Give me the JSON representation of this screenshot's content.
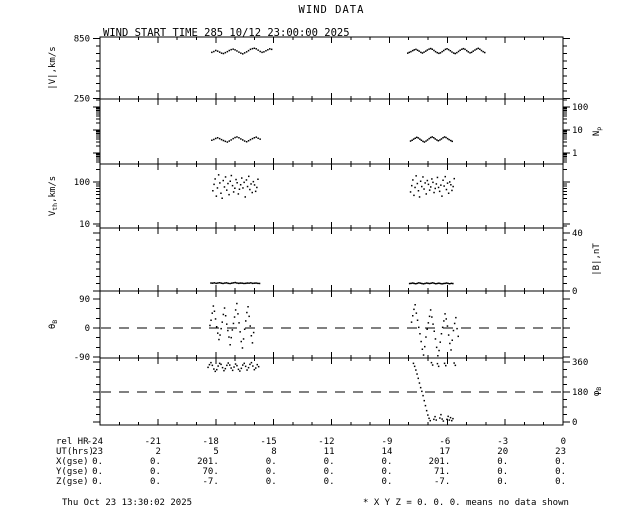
{
  "title": "WIND DATA",
  "subtitle": "WIND START TIME 285 10/12 23:00:00 2025",
  "footer_left": "Thu Oct 23 13:30:02 2025",
  "footer_right": "* X Y Z = 0. 0. 0. means no data shown",
  "colors": {
    "foreground": "#000000",
    "background": "#ffffff"
  },
  "chart_data": {
    "type": "scatter",
    "title": "WIND DATA",
    "x_axis": {
      "label": "rel HR",
      "min": -24,
      "max": 0,
      "minor_step": 1,
      "major_step": 3
    },
    "panels": [
      {
        "name": "bulk-speed",
        "ylabel": [
          {
            "t": "|V|,km/s"
          }
        ],
        "label_side": "left",
        "scale": "linear",
        "vmin": 245,
        "vmax": 865,
        "major_ticks": [
          {
            "v": 850,
            "label": "850"
          },
          {
            "v": 250,
            "label": "250"
          }
        ],
        "minor_ticks": [
          325,
          400,
          475,
          550,
          625,
          700,
          775
        ],
        "connect": false,
        "clusters": [
          {
            "t0": -18.2,
            "dt": 0.1,
            "values": [
              712,
              720,
              731,
              724,
              714,
              704,
              699,
              708,
              719,
              730,
              739,
              744,
              736,
              726,
              713,
              703,
              697,
              706,
              717,
              729,
              741,
              749,
              753,
              746,
              734,
              721,
              711,
              716,
              727,
              737,
              746,
              741
            ]
          },
          {
            "t0": -8.05,
            "dt": 0.085,
            "values": [
              704,
              711,
              719,
              728,
              736,
              741,
              733,
              723,
              712,
              705,
              713,
              724,
              735,
              744,
              750,
              743,
              731,
              719,
              708,
              701,
              707,
              718,
              730,
              741,
              747,
              739,
              727,
              715,
              705,
              699,
              709,
              721,
              733,
              743,
              749,
              741,
              729,
              717,
              707,
              712,
              723,
              735,
              745,
              751,
              742,
              730,
              718,
              710
            ]
          }
        ]
      },
      {
        "name": "proton-density",
        "ylabel": [
          {
            "t": "N"
          },
          {
            "t": "p",
            "sub": true
          }
        ],
        "label_side": "right",
        "scale": "log",
        "vmin": 0.333,
        "vmax": 223,
        "major_ticks": [
          {
            "v": 100,
            "label": "100"
          },
          {
            "v": 10,
            "label": "10"
          },
          {
            "v": 1,
            "label": "1"
          }
        ],
        "minor_ticks": [],
        "connect": false,
        "clusters": [
          {
            "t0": -18.2,
            "dt": 0.1,
            "values": [
              3.6,
              3.9,
              4.3,
              4.6,
              4.2,
              3.8,
              3.5,
              3.2,
              3.0,
              3.3,
              3.7,
              4.2,
              4.7,
              5.0,
              4.6,
              4.1,
              3.7,
              3.3,
              3.1,
              3.4,
              3.8,
              4.2,
              4.6,
              4.9,
              4.4,
              4.0
            ]
          },
          {
            "t0": -7.9,
            "dt": 0.08,
            "values": [
              3.3,
              3.6,
              4.0,
              4.4,
              4.8,
              4.5,
              4.0,
              3.6,
              3.2,
              3.0,
              3.3,
              3.7,
              4.2,
              4.7,
              5.0,
              4.6,
              4.1,
              3.7,
              3.4,
              3.7,
              4.1,
              4.6,
              5.0,
              4.7,
              4.2,
              3.8,
              3.5,
              3.2
            ]
          }
        ]
      },
      {
        "name": "thermal-speed",
        "ylabel": [
          {
            "t": "V"
          },
          {
            "t": "th",
            "sub": true
          },
          {
            "t": ",km/s"
          }
        ],
        "label_side": "left",
        "scale": "log",
        "vmin": 8.03,
        "vmax": 268,
        "major_ticks": [
          {
            "v": 100,
            "label": "100"
          },
          {
            "v": 10,
            "label": "10"
          }
        ],
        "minor_ticks": [],
        "connect": false,
        "clusters": [
          {
            "t0": -18.15,
            "dt": 0.06,
            "values": [
              62,
              88,
              118,
              46,
              72,
              148,
              95,
              54,
              41,
              108,
              76,
              132,
              64,
              92,
              50,
              104,
              142,
              82,
              58,
              71,
              114,
              96,
              52,
              67,
              86,
              124,
              72,
              98,
              44,
              112,
              78,
              136,
              66,
              90,
              56,
              102,
              85,
              60,
              74,
              116
            ]
          },
          {
            "t0": -7.9,
            "dt": 0.058,
            "values": [
              58,
              82,
              112,
              48,
              74,
              140,
              92,
              62,
              44,
              104,
              78,
              132,
              68,
              95,
              52,
              108,
              88,
              64,
              76,
              118,
              98,
              56,
              70,
              90,
              128,
              74,
              60,
              84,
              46,
              110,
              80,
              134,
              66,
              94,
              54,
              100,
              86,
              63,
              78,
              120
            ]
          }
        ]
      },
      {
        "name": "field-magnitude",
        "ylabel": [
          {
            "t": "|B|,nT"
          }
        ],
        "label_side": "right",
        "scale": "linear",
        "vmin": 0,
        "vmax": 43.4,
        "major_ticks": [
          {
            "v": 40,
            "label": "40"
          },
          {
            "v": 0,
            "label": "0"
          }
        ],
        "minor_ticks": [
          5,
          10,
          15,
          20,
          25,
          30,
          35
        ],
        "connect": true,
        "clusters": [
          {
            "t0": -18.25,
            "dt": 0.09,
            "values": [
              5.5,
              5.4,
              5.6,
              5.3,
              5.5,
              5.7,
              5.4,
              5.2,
              5.5,
              5.6,
              5.3,
              5.1,
              5.4,
              5.6,
              5.8,
              5.5,
              5.3,
              5.5,
              5.4,
              5.2,
              5.3,
              5.5,
              5.4,
              5.6,
              5.3,
              5.4,
              5.5,
              5.3,
              5.2
            ]
          },
          {
            "t0": -7.95,
            "dt": 0.08,
            "values": [
              5.1,
              5.3,
              5.5,
              5.2,
              5.0,
              5.3,
              5.6,
              5.4,
              5.1,
              4.9,
              5.2,
              5.5,
              5.3,
              5.1,
              5.4,
              5.6,
              5.3,
              5.0,
              5.2,
              5.4,
              5.1,
              4.9,
              5.1,
              5.3,
              5.5,
              5.2,
              5.0,
              5.3,
              5.1
            ]
          }
        ]
      },
      {
        "name": "theta-b",
        "ylabel": [
          {
            "t": "θ"
          },
          {
            "t": "B",
            "sub": true
          }
        ],
        "label_side": "left",
        "scale": "linear",
        "vmin": -93.1,
        "vmax": 114.8,
        "major_ticks": [
          {
            "v": 90,
            "label": "90"
          },
          {
            "v": 0,
            "label": "0"
          },
          {
            "v": -90,
            "label": "-90"
          }
        ],
        "minor_ticks": [
          -60,
          -30,
          30,
          60
        ],
        "dashed_at": [
          0
        ],
        "connect": false,
        "clusters": [
          {
            "t0": -18.3,
            "dt": 0.058,
            "values": [
              8,
              24,
              46,
              68,
              52,
              28,
              4,
              -16,
              -36,
              -22,
              -2,
              18,
              42,
              62,
              38,
              12,
              -8,
              -28,
              -52,
              -30,
              -6,
              14,
              34,
              56,
              76,
              44,
              16,
              -12,
              -42,
              -62,
              -34,
              -4,
              22,
              48,
              66,
              36,
              6,
              -24,
              -46,
              -14
            ]
          },
          {
            "t0": -7.85,
            "dt": 0.062,
            "values": [
              18,
              38,
              58,
              72,
              46,
              24,
              2,
              -18,
              -42,
              -66,
              -84,
              -58,
              -28,
              -4,
              16,
              36,
              56,
              34,
              12,
              -10,
              -34,
              -60,
              -86,
              -70,
              -44,
              -18,
              2,
              22,
              44,
              28,
              6,
              -22,
              -48,
              -68,
              -38,
              -8,
              14,
              32,
              -2,
              -26
            ]
          }
        ]
      },
      {
        "name": "phi-b",
        "ylabel": [
          {
            "t": "φ"
          },
          {
            "t": "B",
            "sub": true
          }
        ],
        "label_side": "right",
        "scale": "linear",
        "vmin": -18,
        "vmax": 384,
        "major_ticks": [
          {
            "v": 360,
            "label": "360"
          },
          {
            "v": 180,
            "label": "180"
          },
          {
            "v": 0,
            "label": "0"
          }
        ],
        "minor_ticks": [
          45,
          90,
          135,
          225,
          270,
          315
        ],
        "dashed_at": [
          180
        ],
        "connect": false,
        "clusters": [
          {
            "t0": -18.4,
            "dt": 0.075,
            "values": [
              328,
              344,
              356,
              340,
              318,
              304,
              314,
              336,
              352,
              346,
              326,
              308,
              320,
              340,
              354,
              342,
              324,
              310,
              330,
              348,
              338,
              316,
              306,
              322,
              342,
              352,
              334,
              312,
              326,
              346,
              356,
              336,
              314,
              324,
              344,
              332
            ]
          },
          {
            "t0": -7.75,
            "dt": 0.062,
            "values": [
              352,
              334,
              312,
              288,
              262,
              234,
              206,
              184,
              158,
              128,
              98,
              68,
              42,
              22,
              8,
              356,
              342,
              16,
              32,
              12,
              350,
              334,
              24,
              44,
              18,
              6,
              352,
              338,
              16,
              34,
              12,
              26,
              8,
              20,
              354,
              340
            ]
          }
        ]
      }
    ],
    "bottom_table": {
      "rows": [
        {
          "label": "rel HR",
          "values": [
            "-24",
            "-21",
            "-18",
            "-15",
            "-12",
            "-9",
            "-6",
            "-3",
            "0"
          ]
        },
        {
          "label": "UT(hrs)",
          "values": [
            "23",
            "2",
            "5",
            "8",
            "11",
            "14",
            "17",
            "20",
            "23"
          ]
        },
        {
          "label": "X(gse)",
          "values": [
            "0.",
            "0.",
            "201.",
            "0.",
            "0.",
            "0.",
            "201.",
            "0.",
            "0."
          ]
        },
        {
          "label": "Y(gse)",
          "values": [
            "0.",
            "0.",
            "70.",
            "0.",
            "0.",
            "0.",
            "71.",
            "0.",
            "0."
          ]
        },
        {
          "label": "Z(gse)",
          "values": [
            "0.",
            "0.",
            "-7.",
            "0.",
            "0.",
            "0.",
            "-7.",
            "0.",
            "0."
          ]
        }
      ]
    }
  }
}
